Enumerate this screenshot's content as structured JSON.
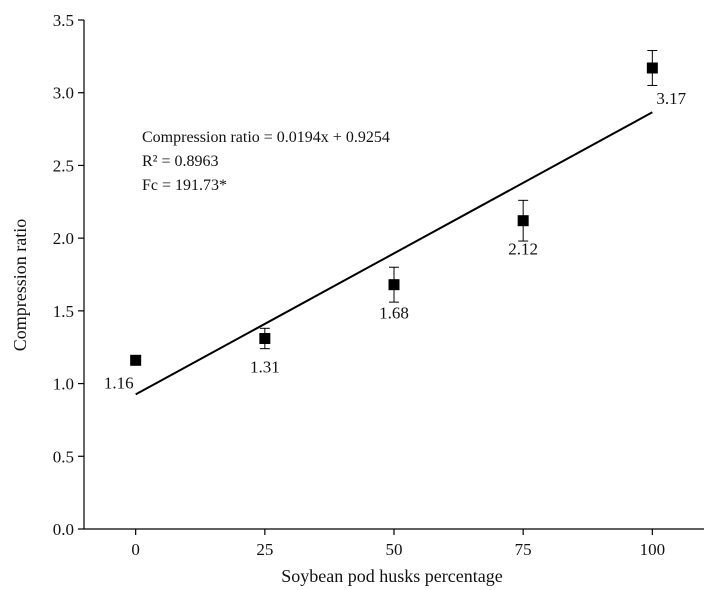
{
  "chart_data": {
    "type": "scatter",
    "xlabel": "Soybean pod husks percentage",
    "ylabel": "Compression ratio",
    "xlim": [
      -10,
      110
    ],
    "ylim": [
      0.0,
      3.5
    ],
    "x_ticks": [
      "0",
      "25",
      "50",
      "75",
      "100"
    ],
    "x_tick_values": [
      0,
      25,
      50,
      75,
      100
    ],
    "y_ticks": [
      "0.0",
      "0.5",
      "1.0",
      "1.5",
      "2.0",
      "2.5",
      "3.0",
      "3.5"
    ],
    "y_tick_values": [
      0.0,
      0.5,
      1.0,
      1.5,
      2.0,
      2.5,
      3.0,
      3.5
    ],
    "points": [
      {
        "x": 0,
        "y": 1.16,
        "label": "1.16",
        "err": 0.0
      },
      {
        "x": 25,
        "y": 1.31,
        "label": "1.31",
        "err": 0.07
      },
      {
        "x": 50,
        "y": 1.68,
        "label": "1.68",
        "err": 0.12
      },
      {
        "x": 75,
        "y": 2.12,
        "label": "2.12",
        "err": 0.14
      },
      {
        "x": 100,
        "y": 3.17,
        "label": "3.17",
        "err": 0.12
      }
    ],
    "fit": {
      "slope": 0.0194,
      "intercept": 0.9254,
      "x_range": [
        0,
        100
      ]
    },
    "annotations": [
      "Compression ratio = 0.0194x + 0.9254",
      "R² = 0.8963",
      "Fc = 191.73*"
    ],
    "grid": false,
    "marker": "filled-square",
    "color": "#000000"
  }
}
